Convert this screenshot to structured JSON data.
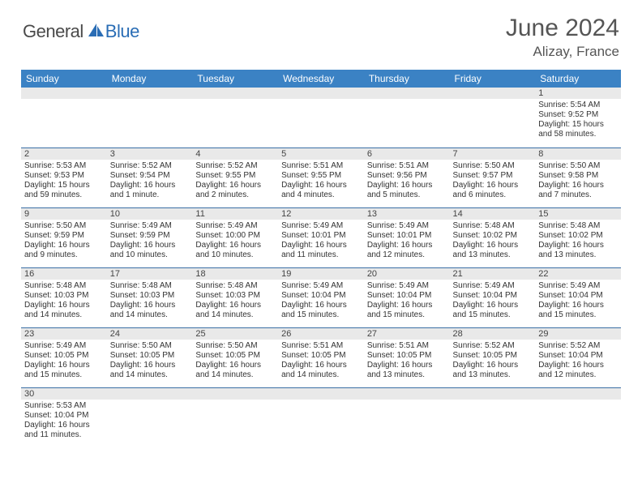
{
  "logo": {
    "general": "General",
    "blue": "Blue"
  },
  "title": "June 2024",
  "location": "Alizay, France",
  "colors": {
    "header_bg": "#3b82c4",
    "header_text": "#ffffff",
    "row_border": "#3b6fa5",
    "daynum_bg": "#e9e9e9",
    "logo_blue": "#2a6db5",
    "logo_gray": "#4a4a4a"
  },
  "weekdays": [
    "Sunday",
    "Monday",
    "Tuesday",
    "Wednesday",
    "Thursday",
    "Friday",
    "Saturday"
  ],
  "weeks": [
    [
      {
        "n": "",
        "sr": "",
        "ss": "",
        "dl": ""
      },
      {
        "n": "",
        "sr": "",
        "ss": "",
        "dl": ""
      },
      {
        "n": "",
        "sr": "",
        "ss": "",
        "dl": ""
      },
      {
        "n": "",
        "sr": "",
        "ss": "",
        "dl": ""
      },
      {
        "n": "",
        "sr": "",
        "ss": "",
        "dl": ""
      },
      {
        "n": "",
        "sr": "",
        "ss": "",
        "dl": ""
      },
      {
        "n": "1",
        "sr": "Sunrise: 5:54 AM",
        "ss": "Sunset: 9:52 PM",
        "dl": "Daylight: 15 hours and 58 minutes."
      }
    ],
    [
      {
        "n": "2",
        "sr": "Sunrise: 5:53 AM",
        "ss": "Sunset: 9:53 PM",
        "dl": "Daylight: 15 hours and 59 minutes."
      },
      {
        "n": "3",
        "sr": "Sunrise: 5:52 AM",
        "ss": "Sunset: 9:54 PM",
        "dl": "Daylight: 16 hours and 1 minute."
      },
      {
        "n": "4",
        "sr": "Sunrise: 5:52 AM",
        "ss": "Sunset: 9:55 PM",
        "dl": "Daylight: 16 hours and 2 minutes."
      },
      {
        "n": "5",
        "sr": "Sunrise: 5:51 AM",
        "ss": "Sunset: 9:55 PM",
        "dl": "Daylight: 16 hours and 4 minutes."
      },
      {
        "n": "6",
        "sr": "Sunrise: 5:51 AM",
        "ss": "Sunset: 9:56 PM",
        "dl": "Daylight: 16 hours and 5 minutes."
      },
      {
        "n": "7",
        "sr": "Sunrise: 5:50 AM",
        "ss": "Sunset: 9:57 PM",
        "dl": "Daylight: 16 hours and 6 minutes."
      },
      {
        "n": "8",
        "sr": "Sunrise: 5:50 AM",
        "ss": "Sunset: 9:58 PM",
        "dl": "Daylight: 16 hours and 7 minutes."
      }
    ],
    [
      {
        "n": "9",
        "sr": "Sunrise: 5:50 AM",
        "ss": "Sunset: 9:59 PM",
        "dl": "Daylight: 16 hours and 9 minutes."
      },
      {
        "n": "10",
        "sr": "Sunrise: 5:49 AM",
        "ss": "Sunset: 9:59 PM",
        "dl": "Daylight: 16 hours and 10 minutes."
      },
      {
        "n": "11",
        "sr": "Sunrise: 5:49 AM",
        "ss": "Sunset: 10:00 PM",
        "dl": "Daylight: 16 hours and 10 minutes."
      },
      {
        "n": "12",
        "sr": "Sunrise: 5:49 AM",
        "ss": "Sunset: 10:01 PM",
        "dl": "Daylight: 16 hours and 11 minutes."
      },
      {
        "n": "13",
        "sr": "Sunrise: 5:49 AM",
        "ss": "Sunset: 10:01 PM",
        "dl": "Daylight: 16 hours and 12 minutes."
      },
      {
        "n": "14",
        "sr": "Sunrise: 5:48 AM",
        "ss": "Sunset: 10:02 PM",
        "dl": "Daylight: 16 hours and 13 minutes."
      },
      {
        "n": "15",
        "sr": "Sunrise: 5:48 AM",
        "ss": "Sunset: 10:02 PM",
        "dl": "Daylight: 16 hours and 13 minutes."
      }
    ],
    [
      {
        "n": "16",
        "sr": "Sunrise: 5:48 AM",
        "ss": "Sunset: 10:03 PM",
        "dl": "Daylight: 16 hours and 14 minutes."
      },
      {
        "n": "17",
        "sr": "Sunrise: 5:48 AM",
        "ss": "Sunset: 10:03 PM",
        "dl": "Daylight: 16 hours and 14 minutes."
      },
      {
        "n": "18",
        "sr": "Sunrise: 5:48 AM",
        "ss": "Sunset: 10:03 PM",
        "dl": "Daylight: 16 hours and 14 minutes."
      },
      {
        "n": "19",
        "sr": "Sunrise: 5:49 AM",
        "ss": "Sunset: 10:04 PM",
        "dl": "Daylight: 16 hours and 15 minutes."
      },
      {
        "n": "20",
        "sr": "Sunrise: 5:49 AM",
        "ss": "Sunset: 10:04 PM",
        "dl": "Daylight: 16 hours and 15 minutes."
      },
      {
        "n": "21",
        "sr": "Sunrise: 5:49 AM",
        "ss": "Sunset: 10:04 PM",
        "dl": "Daylight: 16 hours and 15 minutes."
      },
      {
        "n": "22",
        "sr": "Sunrise: 5:49 AM",
        "ss": "Sunset: 10:04 PM",
        "dl": "Daylight: 16 hours and 15 minutes."
      }
    ],
    [
      {
        "n": "23",
        "sr": "Sunrise: 5:49 AM",
        "ss": "Sunset: 10:05 PM",
        "dl": "Daylight: 16 hours and 15 minutes."
      },
      {
        "n": "24",
        "sr": "Sunrise: 5:50 AM",
        "ss": "Sunset: 10:05 PM",
        "dl": "Daylight: 16 hours and 14 minutes."
      },
      {
        "n": "25",
        "sr": "Sunrise: 5:50 AM",
        "ss": "Sunset: 10:05 PM",
        "dl": "Daylight: 16 hours and 14 minutes."
      },
      {
        "n": "26",
        "sr": "Sunrise: 5:51 AM",
        "ss": "Sunset: 10:05 PM",
        "dl": "Daylight: 16 hours and 14 minutes."
      },
      {
        "n": "27",
        "sr": "Sunrise: 5:51 AM",
        "ss": "Sunset: 10:05 PM",
        "dl": "Daylight: 16 hours and 13 minutes."
      },
      {
        "n": "28",
        "sr": "Sunrise: 5:52 AM",
        "ss": "Sunset: 10:05 PM",
        "dl": "Daylight: 16 hours and 13 minutes."
      },
      {
        "n": "29",
        "sr": "Sunrise: 5:52 AM",
        "ss": "Sunset: 10:04 PM",
        "dl": "Daylight: 16 hours and 12 minutes."
      }
    ],
    [
      {
        "n": "30",
        "sr": "Sunrise: 5:53 AM",
        "ss": "Sunset: 10:04 PM",
        "dl": "Daylight: 16 hours and 11 minutes."
      },
      {
        "n": "",
        "sr": "",
        "ss": "",
        "dl": ""
      },
      {
        "n": "",
        "sr": "",
        "ss": "",
        "dl": ""
      },
      {
        "n": "",
        "sr": "",
        "ss": "",
        "dl": ""
      },
      {
        "n": "",
        "sr": "",
        "ss": "",
        "dl": ""
      },
      {
        "n": "",
        "sr": "",
        "ss": "",
        "dl": ""
      },
      {
        "n": "",
        "sr": "",
        "ss": "",
        "dl": ""
      }
    ]
  ]
}
